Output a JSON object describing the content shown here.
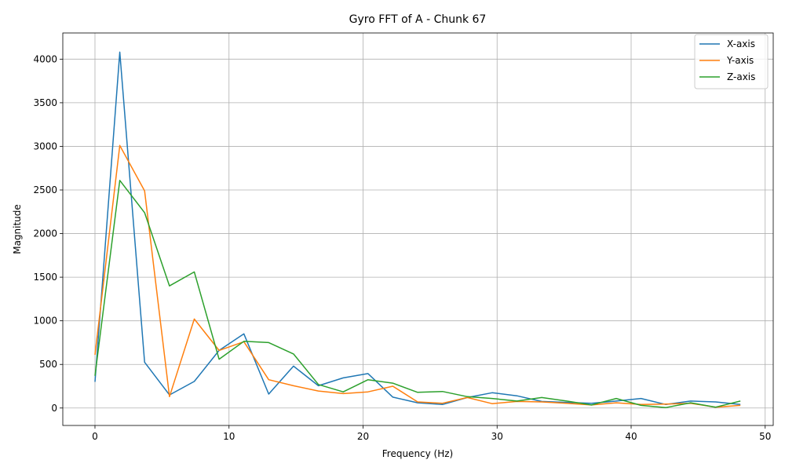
{
  "chart_data": {
    "type": "line",
    "title": "Gyro FFT of A - Chunk 67",
    "xlabel": "Frequency (Hz)",
    "ylabel": "Magnitude",
    "xlim": [
      -2.4,
      50.6
    ],
    "ylim": [
      -200,
      4300
    ],
    "xticks": [
      0,
      10,
      20,
      30,
      40,
      50
    ],
    "yticks": [
      0,
      500,
      1000,
      1500,
      2000,
      2500,
      3000,
      3500,
      4000
    ],
    "grid": true,
    "legend_position": "top-right",
    "x": [
      0,
      1.85,
      3.7,
      5.56,
      7.41,
      9.26,
      11.11,
      12.96,
      14.81,
      16.67,
      18.52,
      20.37,
      22.22,
      24.07,
      25.93,
      27.78,
      29.63,
      31.48,
      33.33,
      35.19,
      37.04,
      38.89,
      40.74,
      42.59,
      44.44,
      46.3,
      48.15
    ],
    "series": [
      {
        "name": "X-axis",
        "color": "#1f77b4",
        "values": [
          300,
          4080,
          525,
          150,
          305,
          660,
          850,
          160,
          480,
          255,
          345,
          395,
          125,
          60,
          40,
          120,
          175,
          140,
          75,
          65,
          55,
          80,
          110,
          40,
          80,
          70,
          40
        ]
      },
      {
        "name": "Y-axis",
        "color": "#ff7f0e",
        "values": [
          610,
          3010,
          2490,
          130,
          1020,
          660,
          760,
          325,
          255,
          195,
          165,
          185,
          250,
          70,
          55,
          120,
          50,
          75,
          70,
          55,
          35,
          60,
          40,
          45,
          55,
          10,
          30
        ]
      },
      {
        "name": "Z-axis",
        "color": "#2ca02c",
        "values": [
          370,
          2610,
          2240,
          1400,
          1560,
          560,
          765,
          750,
          620,
          270,
          185,
          325,
          285,
          180,
          190,
          130,
          110,
          80,
          120,
          80,
          35,
          110,
          30,
          5,
          60,
          10,
          80
        ]
      }
    ]
  }
}
